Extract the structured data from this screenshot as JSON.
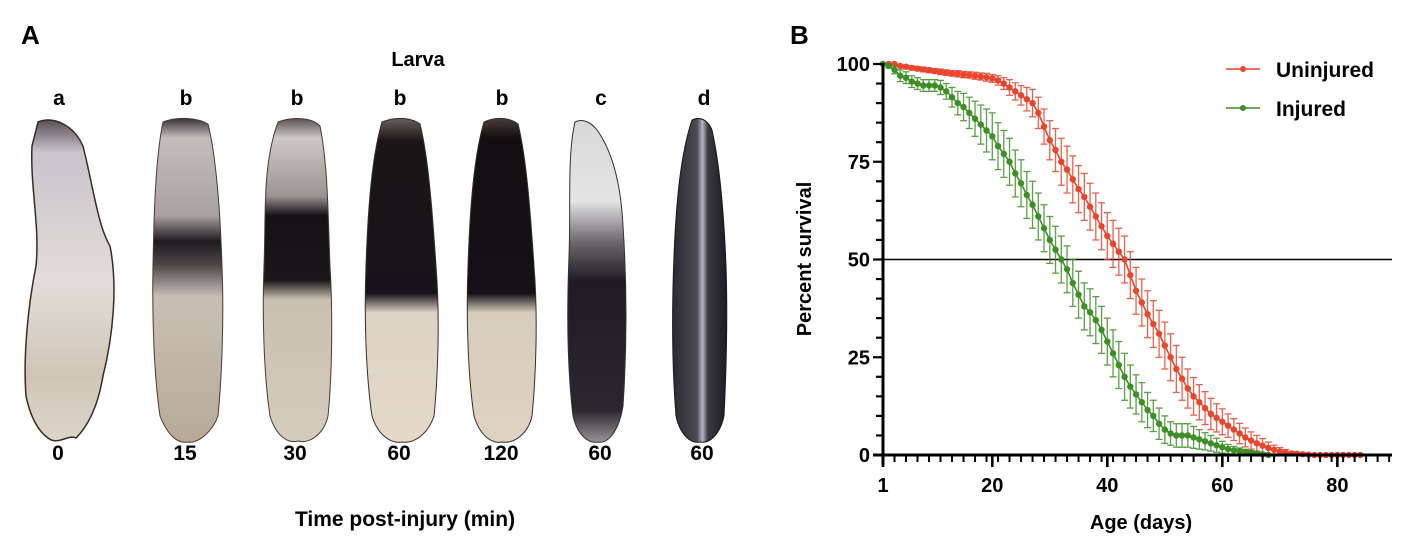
{
  "panel_a": {
    "label": "A",
    "title": "Larva",
    "grades": [
      "a",
      "b",
      "b",
      "b",
      "b",
      "c",
      "d"
    ],
    "times": [
      "0",
      "15",
      "30",
      "60",
      "120",
      "60",
      "60"
    ],
    "x_axis_title": "Time post-injury (min)",
    "larvae": [
      {
        "name": "larva-0min",
        "pattern": "pale",
        "dark_band": "none"
      },
      {
        "name": "larva-15min",
        "pattern": "band",
        "dark_band": "narrow"
      },
      {
        "name": "larva-30min",
        "pattern": "band",
        "dark_band": "wide"
      },
      {
        "name": "larva-60min",
        "pattern": "upper-dark",
        "dark_band": "upper-half"
      },
      {
        "name": "larva-120min",
        "pattern": "upper-dark",
        "dark_band": "upper-half"
      },
      {
        "name": "larva-60min-c",
        "pattern": "lower-dark",
        "dark_band": "lower-two-thirds"
      },
      {
        "name": "larva-60min-d",
        "pattern": "full-dark",
        "dark_band": "full"
      }
    ]
  },
  "panel_b": {
    "label": "B"
  },
  "chart_data": {
    "type": "line",
    "title": "",
    "xlabel": "Age (days)",
    "ylabel": "Percent survival",
    "xlim": [
      1,
      89.5
    ],
    "ylim": [
      0,
      100
    ],
    "x_ticks": [
      1,
      20,
      40,
      60,
      80
    ],
    "y_ticks": [
      0,
      25,
      50,
      75,
      100
    ],
    "reference_line": {
      "y": 50,
      "color": "#000000"
    },
    "legend_position": "top-right",
    "error_bars": true,
    "series": [
      {
        "name": "Uninjured",
        "color": "#e8452c",
        "x": [
          1,
          2,
          3,
          4,
          5,
          6,
          7,
          8,
          9,
          10,
          11,
          12,
          13,
          14,
          15,
          16,
          17,
          18,
          19,
          20,
          21,
          22,
          23,
          24,
          25,
          26,
          27,
          28,
          29,
          30,
          31,
          32,
          33,
          34,
          35,
          36,
          37,
          38,
          39,
          40,
          41,
          42,
          43,
          44,
          45,
          46,
          47,
          48,
          49,
          50,
          51,
          52,
          53,
          54,
          55,
          56,
          57,
          58,
          59,
          60,
          61,
          62,
          63,
          64,
          65,
          66,
          67,
          68,
          69,
          70,
          71,
          72,
          73,
          74,
          75,
          76,
          77,
          78,
          79,
          80,
          81,
          82,
          83,
          84
        ],
        "y": [
          100,
          100,
          100,
          99.5,
          99.3,
          99,
          98.8,
          98.6,
          98.4,
          98.2,
          98,
          97.8,
          97.6,
          97.5,
          97.3,
          97.2,
          97,
          96.8,
          96.6,
          96.3,
          95.8,
          95,
          94,
          93,
          92,
          91,
          90,
          87.5,
          84,
          80.5,
          78,
          75,
          73,
          70.5,
          68,
          66,
          63.5,
          61,
          58.5,
          56,
          54,
          52,
          50,
          46,
          42,
          39,
          36,
          33.5,
          31,
          28,
          25,
          22,
          19.5,
          17,
          15,
          13.5,
          12,
          10.5,
          9.5,
          8.5,
          7.5,
          6.5,
          5.5,
          4.5,
          3.7,
          3,
          2.4,
          1.8,
          1.3,
          0.9,
          0.6,
          0.4,
          0.3,
          0.2,
          0.1,
          0,
          0,
          0,
          0,
          0,
          0,
          0,
          0,
          0
        ],
        "err": [
          0,
          0,
          0,
          0.3,
          0.4,
          0.5,
          0.5,
          0.6,
          0.6,
          0.6,
          0.7,
          0.7,
          0.7,
          0.8,
          0.8,
          0.8,
          0.9,
          0.9,
          1,
          1,
          1.2,
          1.5,
          2,
          2.2,
          2.5,
          3,
          3.5,
          4,
          4.5,
          5,
          5.5,
          6,
          6,
          6,
          6,
          6,
          6,
          6,
          6,
          6,
          6,
          6,
          6,
          6,
          6,
          6,
          6,
          6,
          6,
          6,
          6,
          6,
          5.5,
          5,
          4.8,
          4.5,
          4.2,
          4,
          3.6,
          3.3,
          3,
          2.8,
          2.6,
          2.4,
          2.2,
          2,
          1.8,
          1.5,
          1.2,
          1,
          0.8,
          0.5,
          0.4,
          0.3,
          0.2,
          0,
          0,
          0,
          0,
          0,
          0,
          0,
          0,
          0
        ]
      },
      {
        "name": "Injured",
        "color": "#3e8e26",
        "x": [
          1,
          2,
          3,
          4,
          5,
          6,
          7,
          8,
          9,
          10,
          11,
          12,
          13,
          14,
          15,
          16,
          17,
          18,
          19,
          20,
          21,
          22,
          23,
          24,
          25,
          26,
          27,
          28,
          29,
          30,
          31,
          32,
          33,
          34,
          35,
          36,
          37,
          38,
          39,
          40,
          41,
          42,
          43,
          44,
          45,
          46,
          47,
          48,
          49,
          50,
          51,
          52,
          53,
          54,
          55,
          56,
          57,
          58,
          59,
          60,
          61,
          62,
          63,
          64,
          65,
          66,
          67,
          68
        ],
        "y": [
          100,
          99.5,
          98.5,
          97,
          96.5,
          95.5,
          95,
          94.5,
          94.5,
          94.5,
          94,
          93,
          91.5,
          90,
          89,
          87.5,
          86,
          84.5,
          83,
          81.5,
          79,
          77,
          75,
          72,
          69.5,
          66.5,
          64,
          61,
          58,
          55,
          52.5,
          50,
          47.5,
          44,
          41,
          38,
          36.5,
          34.5,
          32,
          29,
          26,
          23,
          20,
          17.5,
          15.5,
          13.5,
          11.5,
          10,
          8,
          6.5,
          5.5,
          5,
          5,
          5,
          4.5,
          4,
          3.5,
          3,
          2.5,
          2,
          1.5,
          1.2,
          1,
          0.8,
          0.6,
          0.4,
          0.2,
          0
        ],
        "err": [
          0,
          0.5,
          1,
          1.5,
          1.5,
          1.5,
          1.5,
          1.5,
          1.5,
          1.5,
          1.8,
          2,
          2.5,
          3,
          3.5,
          4,
          4.5,
          5,
          5.5,
          6,
          6,
          6,
          6,
          6,
          6,
          6,
          6,
          6,
          6,
          6,
          6,
          6,
          6,
          6,
          6,
          6,
          6,
          6,
          6,
          6,
          6,
          6,
          6,
          5.5,
          5,
          5,
          4.5,
          4,
          4,
          3.5,
          3,
          3,
          3,
          3,
          2.8,
          2.5,
          2.2,
          2,
          1.8,
          1.5,
          1.2,
          1,
          0.8,
          0.6,
          0.5,
          0.4,
          0.2,
          0
        ]
      }
    ]
  }
}
